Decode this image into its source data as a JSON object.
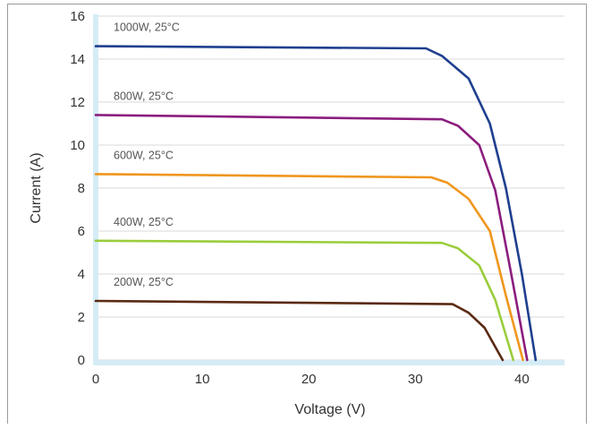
{
  "chart_data": {
    "type": "line",
    "title": "",
    "xlabel": "Voltage (V)",
    "ylabel": "Current (A)",
    "xlim": [
      0,
      44
    ],
    "ylim": [
      0,
      16
    ],
    "xticks": [
      0,
      10,
      20,
      30,
      40
    ],
    "yticks": [
      0,
      2,
      4,
      6,
      8,
      10,
      12,
      14,
      16
    ],
    "grid": "horizontal",
    "series": [
      {
        "name": "1000W, 25°C",
        "color": "#1f3f8f",
        "x": [
          0,
          31,
          32.5,
          35,
          37,
          38.5,
          40,
          41.3
        ],
        "y": [
          14.6,
          14.5,
          14.15,
          13.1,
          11.0,
          8.0,
          4.0,
          0
        ]
      },
      {
        "name": "800W, 25°C",
        "color": "#8b1d7e",
        "x": [
          0,
          32.5,
          34,
          36,
          37.5,
          39,
          40.5
        ],
        "y": [
          11.4,
          11.2,
          10.9,
          10.0,
          7.9,
          4.0,
          0
        ]
      },
      {
        "name": "600W, 25°C",
        "color": "#f0961e",
        "x": [
          0,
          31.5,
          33,
          35,
          37,
          38.5,
          40.1
        ],
        "y": [
          8.65,
          8.5,
          8.25,
          7.5,
          6.0,
          3.0,
          0
        ]
      },
      {
        "name": "400W, 25°C",
        "color": "#9acd3c",
        "x": [
          0,
          32.5,
          34,
          36,
          37.5,
          39.2
        ],
        "y": [
          5.55,
          5.45,
          5.2,
          4.4,
          2.8,
          0
        ]
      },
      {
        "name": "200W, 25°C",
        "color": "#5a2a14",
        "x": [
          0,
          33.5,
          35,
          36.5,
          38.2
        ],
        "y": [
          2.75,
          2.6,
          2.2,
          1.5,
          0
        ]
      }
    ]
  }
}
